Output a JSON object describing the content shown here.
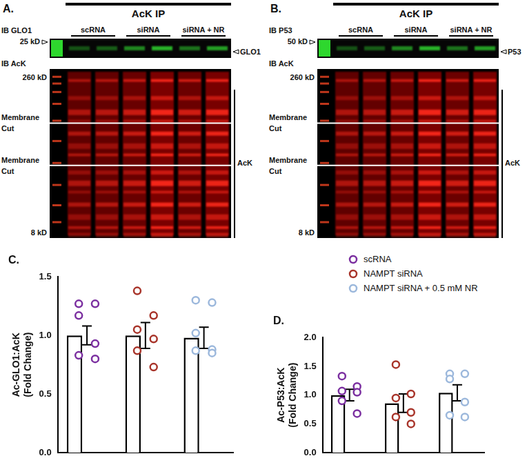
{
  "figure": {
    "blots": [
      {
        "label": "A.",
        "header": "AcK IP",
        "lanes": [
          "scRNA",
          "siRNA",
          "siRNA + NR"
        ],
        "top": {
          "ib": "IB GLO1",
          "ladder": "25 kD",
          "band": "GLO1"
        },
        "bottom": {
          "ib": "IB AcK",
          "ladder_top": "260 kD",
          "ladder_bottom": "8 kD",
          "cuts": [
            "Membrane Cut",
            "Membrane Cut"
          ],
          "band": "AcK"
        }
      },
      {
        "label": "B.",
        "header": "AcK IP",
        "lanes": [
          "scRNA",
          "siRNA",
          "siRNA + NR"
        ],
        "top": {
          "ib": "IB P53",
          "ladder": "50 kD",
          "band": "P53"
        },
        "bottom": {
          "ib": "IB AcK",
          "ladder_top": "260 kD",
          "ladder_bottom": "8 kD",
          "cuts": [
            "Membrane Cut",
            "Membrane Cut"
          ],
          "band": "AcK"
        }
      }
    ]
  },
  "chart_data": [
    {
      "type": "bar",
      "title": "C.",
      "categories": [
        "scRNA",
        "NAMPT siRNA",
        "NAMPT siRNA + 0.5 mM NR"
      ],
      "values": [
        1.0,
        1.0,
        0.98
      ],
      "errors": [
        0.08,
        0.11,
        0.09
      ],
      "points": [
        [
          1.27,
          1.27,
          1.17,
          0.93,
          0.83,
          0.8
        ],
        [
          1.38,
          1.17,
          1.05,
          0.97,
          0.87,
          0.73
        ],
        [
          1.3,
          1.28,
          1.02,
          0.88,
          0.87,
          0.85
        ]
      ],
      "colors": [
        "#7b2fa0",
        "#a8342a",
        "#9cb8dc"
      ],
      "ylabel": [
        "Ac-GLO1:AcK",
        "(Fold Change)"
      ],
      "ylim": [
        0,
        1.5
      ],
      "yticks": [
        {
          "value": 0,
          "label": "0.0"
        },
        0.5,
        {
          "value": 1,
          "label": "1.0"
        },
        1.5
      ],
      "grid": false,
      "tick_labels": "y",
      "marker": "circle"
    },
    {
      "type": "bar",
      "title": "D.",
      "categories": [
        "scRNA",
        "NAMPT siRNA",
        "NAMPT siRNA + 0.5 mM NR"
      ],
      "values": [
        1.0,
        0.86,
        1.04
      ],
      "errors": [
        0.1,
        0.16,
        0.14
      ],
      "points": [
        [
          1.33,
          1.15,
          1.07,
          1.05,
          0.9,
          0.68
        ],
        [
          1.53,
          1.02,
          0.95,
          0.7,
          0.62,
          0.5
        ],
        [
          1.37,
          1.37,
          1.28,
          0.88,
          0.65,
          0.62
        ]
      ],
      "colors": [
        "#7b2fa0",
        "#a8342a",
        "#9cb8dc"
      ],
      "ylabel": [
        "Ac-P53:AcK",
        "(Fold Change)"
      ],
      "ylim": [
        0,
        2.0
      ],
      "yticks": [
        {
          "value": 0,
          "label": "0.0"
        },
        0.5,
        {
          "value": 1,
          "label": "1.0"
        },
        1.5,
        {
          "value": 2,
          "label": "2.0"
        }
      ],
      "grid": false,
      "tick_labels": "y",
      "marker": "circle",
      "legend": "top"
    }
  ]
}
